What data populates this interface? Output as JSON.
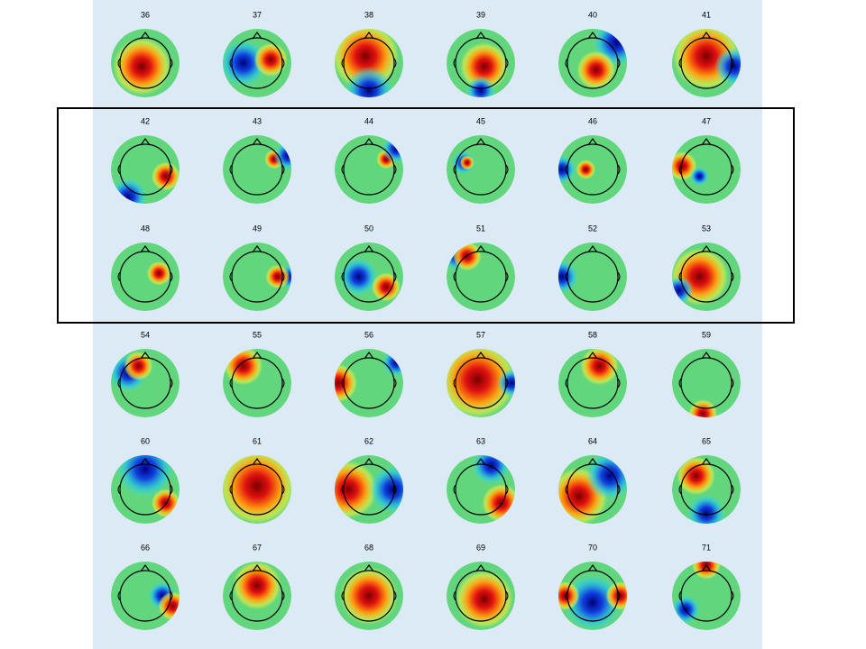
{
  "labels": [
    [
      "36",
      "37",
      "38",
      "39",
      "40",
      "41"
    ],
    [
      "42",
      "43",
      "44",
      "45",
      "46",
      "47"
    ],
    [
      "48",
      "49",
      "50",
      "51",
      "52",
      "53"
    ],
    [
      "54",
      "55",
      "56",
      "57",
      "58",
      "59"
    ],
    [
      "60",
      "61",
      "62",
      "63",
      "64",
      "65"
    ],
    [
      "66",
      "67",
      "68",
      "69",
      "70",
      "71"
    ]
  ]
}
